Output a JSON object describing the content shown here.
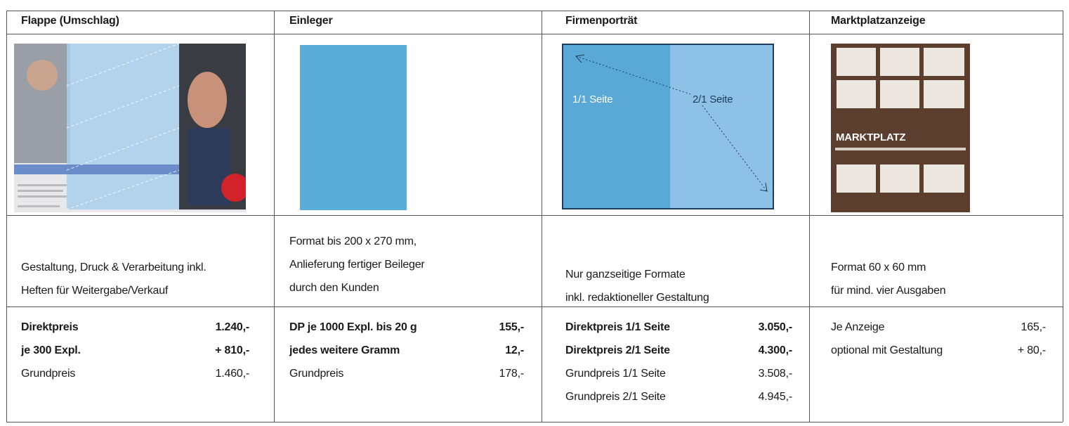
{
  "columns": [
    {
      "title": "Flappe (Umschlag)",
      "image_labels": [],
      "description": [
        "Gestaltung, Druck & Verarbeitung inkl.",
        "Heften für Weitergabe/Verkauf"
      ],
      "prices": [
        {
          "label": "Direktpreis",
          "value": "1.240,-",
          "bold": true
        },
        {
          "label": "je 300 Expl.",
          "value": "+ 810,-",
          "bold": true
        },
        {
          "label": "Grundpreis",
          "value": "1.460,-",
          "bold": false
        }
      ]
    },
    {
      "title": "Einleger",
      "image_labels": [],
      "description": [
        "Format bis 200 x 270 mm,",
        "Anlieferung fertiger Beileger",
        "durch den Kunden"
      ],
      "prices": [
        {
          "label": "DP je 1000 Expl. bis 20 g",
          "value": "155,-",
          "bold": true
        },
        {
          "label": "jedes weitere Gramm",
          "value": "12,-",
          "bold": true
        },
        {
          "label": "Grundpreis",
          "value": "178,-",
          "bold": false
        }
      ]
    },
    {
      "title": "Firmenporträt",
      "image_labels": [
        "1/1 Seite",
        "2/1 Seite"
      ],
      "description": [
        "Nur ganzseitige Formate",
        "inkl. redaktioneller Gestaltung"
      ],
      "prices": [
        {
          "label": "Direktpreis 1/1 Seite",
          "value": "3.050,-",
          "bold": true
        },
        {
          "label": "Direktpreis 2/1 Seite",
          "value": "4.300,-",
          "bold": true
        },
        {
          "label": "Grundpreis 1/1 Seite",
          "value": "3.508,-",
          "bold": false
        },
        {
          "label": "Grundpreis 2/1 Seite",
          "value": "4.945,-",
          "bold": false
        }
      ]
    },
    {
      "title": "Marktplatzanzeige",
      "image_labels": [
        "MARKTPLATZ"
      ],
      "description": [
        "Format 60 x 60 mm",
        "für mind. vier Ausgaben"
      ],
      "prices": [
        {
          "label": "Je Anzeige",
          "value": "165,-",
          "bold": false
        },
        {
          "label": "optional mit Gestaltung",
          "value": "+ 80,-",
          "bold": false
        }
      ]
    }
  ]
}
